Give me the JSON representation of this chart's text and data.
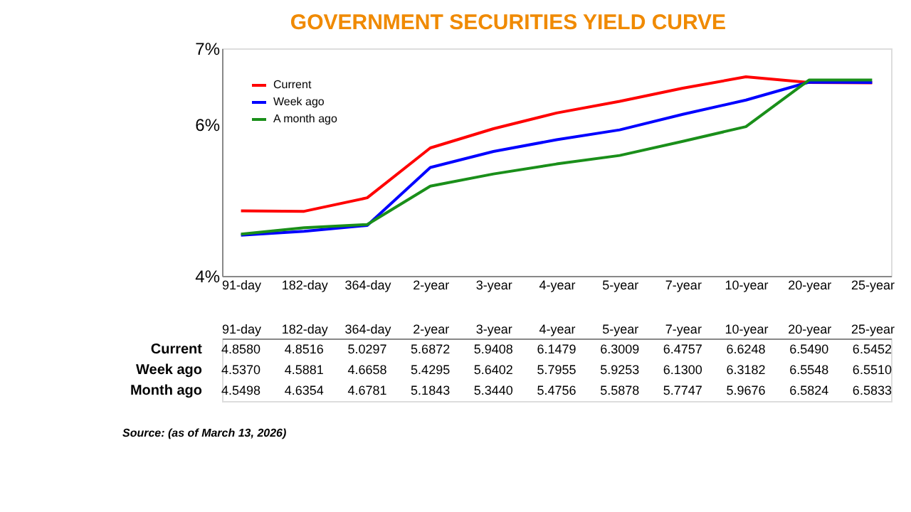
{
  "chart_data": {
    "type": "line",
    "title": "GOVERNMENT SECURITIES YIELD CURVE",
    "categories": [
      "91-day",
      "182-day",
      "364-day",
      "2-year",
      "3-year",
      "4-year",
      "5-year",
      "7-year",
      "10-year",
      "20-year",
      "25-year"
    ],
    "series": [
      {
        "name": "Current",
        "color": "#ff0000",
        "values": [
          4.858,
          4.8516,
          5.0297,
          5.6872,
          5.9408,
          6.1479,
          6.3009,
          6.4757,
          6.6248,
          6.549,
          6.5452
        ],
        "value_labels": [
          "4.8580",
          "4.8516",
          "5.0297",
          "5.6872",
          "5.9408",
          "6.1479",
          "6.3009",
          "6.4757",
          "6.6248",
          "6.5490",
          "6.5452"
        ]
      },
      {
        "name": "Week ago",
        "color": "#0000ff",
        "values": [
          4.537,
          4.5881,
          4.6658,
          5.4295,
          5.6402,
          5.7955,
          5.9253,
          6.13,
          6.3182,
          6.5548,
          6.551
        ],
        "value_labels": [
          "4.5370",
          "4.5881",
          "4.6658",
          "5.4295",
          "5.6402",
          "5.7955",
          "5.9253",
          "6.1300",
          "6.3182",
          "6.5548",
          "6.5510"
        ]
      },
      {
        "name": "A month ago",
        "color": "#1a8f1a",
        "values": [
          4.5498,
          4.6354,
          4.6781,
          5.1843,
          5.344,
          5.4756,
          5.5878,
          5.7747,
          5.9676,
          6.5824,
          6.5833
        ],
        "value_labels": [
          "4.5498",
          "4.6354",
          "4.6781",
          "5.1843",
          "5.3440",
          "5.4756",
          "5.5878",
          "5.7747",
          "5.9676",
          "6.5824",
          "6.5833"
        ]
      }
    ],
    "ylim": [
      4,
      7
    ],
    "yticks": [
      {
        "value": 4,
        "label": "4%"
      },
      {
        "value": 6,
        "label": "6%"
      },
      {
        "value": 7,
        "label": "7%"
      }
    ],
    "grid": false,
    "legend": "top left",
    "marker": "none",
    "line_style": "solid",
    "annotations": [
      "Current",
      "Week ago",
      "Month ago",
      "Source: (as of March 13, 2026)"
    ]
  }
}
